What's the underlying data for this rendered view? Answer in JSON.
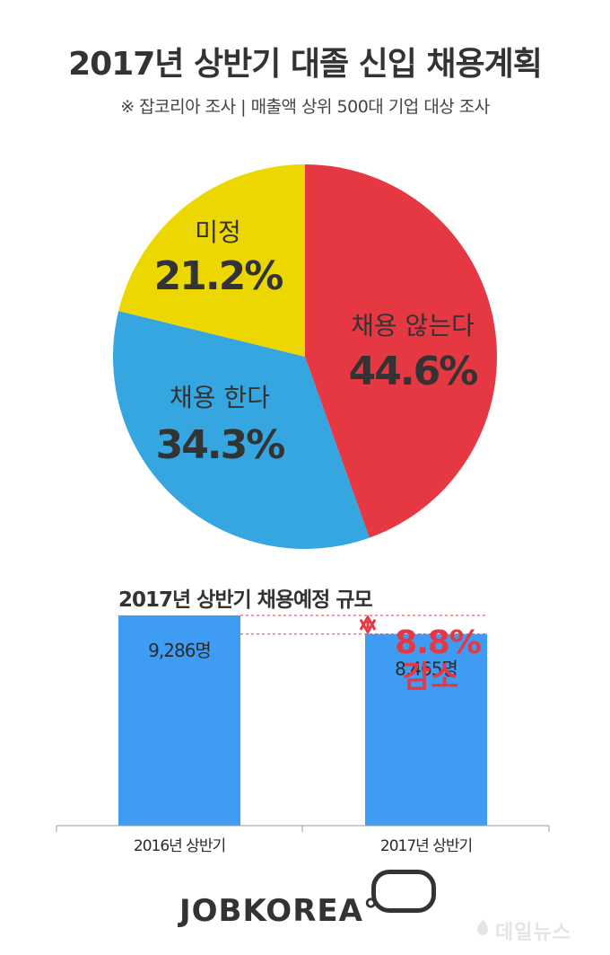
{
  "title": "2017년 상반기 대졸 신입 채용계획",
  "subtitle": "※ 잡코리아 조사 |  매출액 상위 500대 기업 대상 조사",
  "chart_data": [
    {
      "type": "pie",
      "slices": [
        {
          "label": "채용 않는다",
          "value": 44.6,
          "display": "44.6%",
          "color": "#e63843"
        },
        {
          "label": "채용 한다",
          "value": 34.3,
          "display": "34.3%",
          "color": "#35a6e0"
        },
        {
          "label": "미정",
          "value": 21.2,
          "display": "21.2%",
          "color": "#ecd800"
        }
      ],
      "start": "12 o'clock",
      "direction": "clockwise"
    },
    {
      "type": "bar",
      "title": "2017년 상반기 채용예정 규모",
      "categories": [
        "2016년 상반기",
        "2017년 상반기"
      ],
      "values": [
        9286,
        8465
      ],
      "value_labels": [
        "9,286명",
        "8,465명"
      ],
      "bar_color": "#3e9cf3",
      "ylim": [
        0,
        9286
      ],
      "annotation": {
        "line1": "8.8%",
        "line2": "감소",
        "color": "#e63843"
      }
    }
  ],
  "footer": {
    "brand": "JOBKOREA",
    "brand_symbol": "°",
    "watermark": "데일뉴스"
  }
}
